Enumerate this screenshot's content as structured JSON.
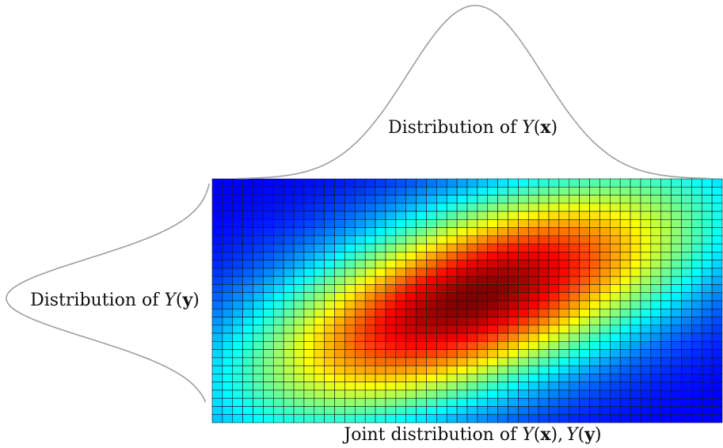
{
  "labels": {
    "marginal_x": {
      "prefix": "Distribution of ",
      "var": "Y",
      "open": "(",
      "arg": "x",
      "close": ")"
    },
    "marginal_y": {
      "prefix": "Distribution of ",
      "var": "Y",
      "open": "(",
      "arg": "y",
      "close": ")"
    },
    "joint": {
      "prefix": "Joint distribution of ",
      "var1": "Y",
      "open1": "(",
      "arg1": "x",
      "close1": "),",
      "var2": "Y",
      "open2": "(",
      "arg2": "y",
      "close2": ")"
    }
  },
  "colors": {
    "curve": "#9e9e9e",
    "grid_line": "#1a1a1a",
    "colormap": "jet"
  },
  "heatmap": {
    "columns": 50,
    "rows": 30,
    "distribution": "bivariate normal",
    "correlation": "positive",
    "peak_position": "center"
  }
}
